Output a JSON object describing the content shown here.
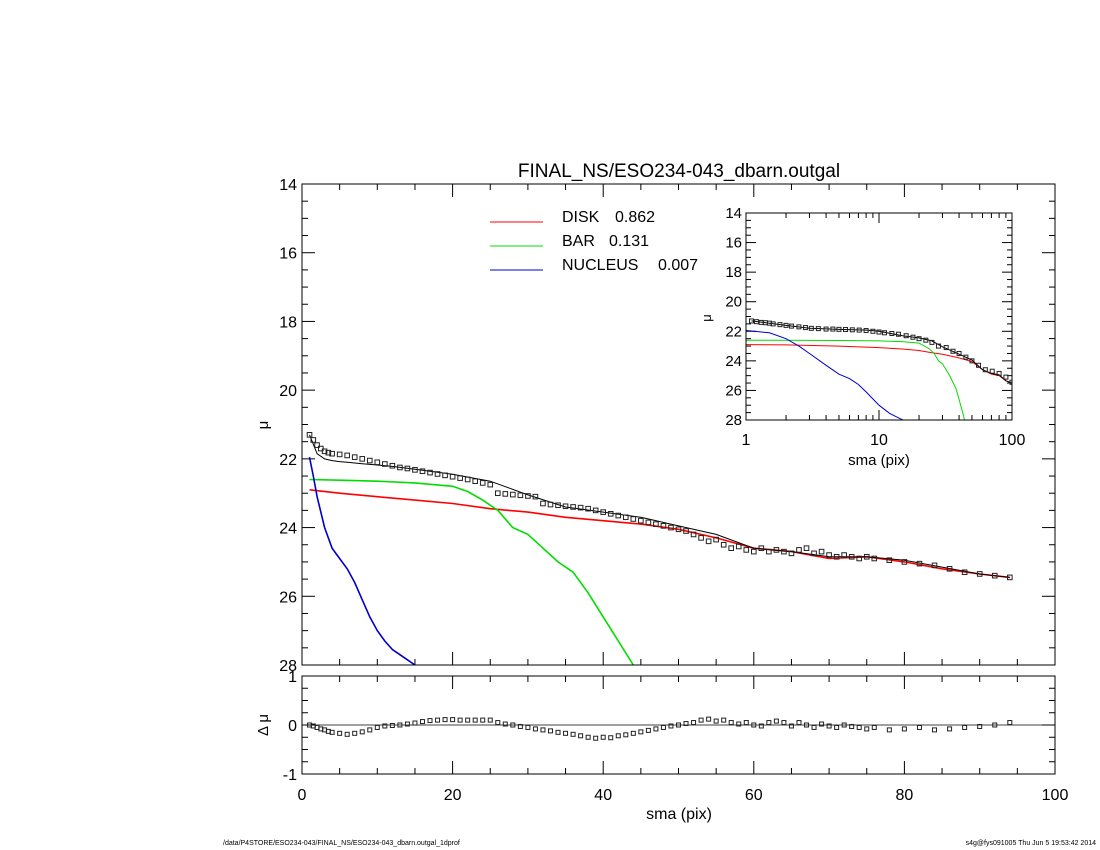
{
  "footer": {
    "path": "/data/P4STORE/ESO234-043/FINAL_NS/ESO234-043_dbarn.outgal_1dprof",
    "stamp": "s4g@fys091005  Thu Jun  5 19:53:42 2014"
  },
  "colors": {
    "disk": "#ff0000",
    "bar": "#00dd00",
    "nucleus": "#0000cc",
    "data": "#000000",
    "model": "#000000"
  },
  "chart_data": [
    {
      "id": "main",
      "type": "scatter",
      "title": "FINAL_NS/ESO234-043_dbarn.outgal",
      "xlabel": "",
      "ylabel": "μ",
      "xlim": [
        0,
        100
      ],
      "ylim": [
        28,
        14
      ],
      "y_inverted": true,
      "yticks": [
        "14",
        "16",
        "18",
        "20",
        "22",
        "24",
        "26",
        "28"
      ],
      "legend": {
        "placement": "top-center",
        "entries": [
          {
            "label": "DISK",
            "value": "0.862",
            "color": "#ff0000"
          },
          {
            "label": "BAR",
            "value": "0.131",
            "color": "#00dd00"
          },
          {
            "label": "NUCLEUS",
            "value": "0.007",
            "color": "#0000cc"
          }
        ]
      },
      "data_points": {
        "x": [
          1,
          1.5,
          2,
          2.5,
          3,
          3.5,
          4,
          5,
          6,
          7,
          8,
          9,
          10,
          11,
          12,
          13,
          14,
          15,
          16,
          17,
          18,
          19,
          20,
          21,
          22,
          23,
          24,
          25,
          26,
          27,
          28,
          29,
          30,
          31,
          32,
          33,
          34,
          35,
          36,
          37,
          38,
          39,
          40,
          41,
          42,
          43,
          44,
          45,
          46,
          47,
          48,
          49,
          50,
          51,
          52,
          53,
          54,
          55,
          56,
          57,
          58,
          59,
          60,
          61,
          62,
          63,
          64,
          65,
          66,
          67,
          68,
          69,
          70,
          71,
          72,
          73,
          74,
          75,
          76,
          78,
          80,
          82,
          84,
          86,
          88,
          90,
          92,
          94
        ],
        "y": [
          21.3,
          21.45,
          21.6,
          21.7,
          21.78,
          21.82,
          21.85,
          21.87,
          21.9,
          21.95,
          22.0,
          22.05,
          22.1,
          22.15,
          22.2,
          22.25,
          22.28,
          22.32,
          22.36,
          22.4,
          22.44,
          22.48,
          22.52,
          22.56,
          22.6,
          22.65,
          22.7,
          22.75,
          23.0,
          23.02,
          23.04,
          23.06,
          23.08,
          23.1,
          23.3,
          23.33,
          23.35,
          23.38,
          23.4,
          23.42,
          23.45,
          23.5,
          23.55,
          23.6,
          23.65,
          23.7,
          23.75,
          23.8,
          23.85,
          23.9,
          23.95,
          24.0,
          24.05,
          24.1,
          24.2,
          24.3,
          24.4,
          24.35,
          24.5,
          24.6,
          24.55,
          24.65,
          24.7,
          24.6,
          24.7,
          24.65,
          24.7,
          24.75,
          24.65,
          24.6,
          24.75,
          24.7,
          24.8,
          24.85,
          24.8,
          24.85,
          24.9,
          24.85,
          24.9,
          24.95,
          25.0,
          25.05,
          25.1,
          25.2,
          25.3,
          25.35,
          25.4,
          25.45
        ]
      },
      "series": [
        {
          "name": "DISK",
          "color": "#ff0000",
          "x": [
            1,
            5,
            10,
            15,
            20,
            25,
            30,
            35,
            40,
            45,
            50,
            55,
            60,
            65,
            70,
            75,
            80,
            85,
            90,
            94
          ],
          "y": [
            22.9,
            23.0,
            23.1,
            23.2,
            23.3,
            23.45,
            23.55,
            23.7,
            23.8,
            23.9,
            24.05,
            24.3,
            24.6,
            24.7,
            24.9,
            24.85,
            25.0,
            25.2,
            25.35,
            25.45
          ]
        },
        {
          "name": "BAR",
          "color": "#00dd00",
          "x": [
            1,
            5,
            10,
            15,
            20,
            22,
            24,
            26,
            28,
            30,
            32,
            34,
            36,
            38,
            40,
            42,
            44
          ],
          "y": [
            22.6,
            22.62,
            22.65,
            22.7,
            22.8,
            22.95,
            23.2,
            23.5,
            24.0,
            24.2,
            24.6,
            25.0,
            25.3,
            25.9,
            26.6,
            27.3,
            28.0
          ]
        },
        {
          "name": "NUCLEUS",
          "color": "#0000cc",
          "x": [
            1,
            1.5,
            2,
            3,
            4,
            5,
            6,
            7,
            8,
            9,
            10,
            11,
            12,
            13,
            14,
            15,
            16
          ],
          "y": [
            21.95,
            22.5,
            23.1,
            24.0,
            24.6,
            24.9,
            25.2,
            25.6,
            26.1,
            26.6,
            27.0,
            27.3,
            27.55,
            27.7,
            27.85,
            28.0,
            28.1
          ]
        },
        {
          "name": "MODEL",
          "color": "#000000",
          "x": [
            1,
            2,
            3,
            4,
            5,
            6,
            7,
            8,
            9,
            10,
            12,
            15,
            20,
            25,
            30,
            35,
            40,
            45,
            50,
            55,
            60,
            65,
            70,
            75,
            80,
            85,
            90,
            94
          ],
          "y": [
            21.3,
            21.85,
            22.0,
            22.05,
            22.08,
            22.1,
            22.12,
            22.14,
            22.16,
            22.18,
            22.22,
            22.3,
            22.45,
            22.65,
            23.05,
            23.4,
            23.55,
            23.7,
            23.95,
            24.2,
            24.6,
            24.7,
            24.85,
            24.85,
            24.95,
            25.15,
            25.35,
            25.45
          ]
        }
      ]
    },
    {
      "id": "residual",
      "type": "scatter",
      "xlabel": "sma (pix)",
      "ylabel": "Δ μ",
      "xlim": [
        0,
        100
      ],
      "ylim": [
        -1,
        1
      ],
      "xticks": [
        "0",
        "20",
        "40",
        "60",
        "80",
        "100"
      ],
      "yticks": [
        "1",
        "0",
        "-1"
      ],
      "x": [
        1,
        1.5,
        2,
        2.5,
        3,
        3.5,
        4,
        5,
        6,
        7,
        8,
        9,
        10,
        11,
        12,
        13,
        14,
        15,
        16,
        17,
        18,
        19,
        20,
        21,
        22,
        23,
        24,
        25,
        26,
        27,
        28,
        29,
        30,
        31,
        32,
        33,
        34,
        35,
        36,
        37,
        38,
        39,
        40,
        41,
        42,
        43,
        44,
        45,
        46,
        47,
        48,
        49,
        50,
        51,
        52,
        53,
        54,
        55,
        56,
        57,
        58,
        59,
        60,
        61,
        62,
        63,
        64,
        65,
        66,
        67,
        68,
        69,
        70,
        71,
        72,
        73,
        74,
        75,
        76,
        78,
        80,
        82,
        84,
        86,
        88,
        90,
        92,
        94
      ],
      "y": [
        0.0,
        -0.02,
        -0.05,
        -0.08,
        -0.1,
        -0.13,
        -0.15,
        -0.17,
        -0.19,
        -0.17,
        -0.14,
        -0.1,
        -0.05,
        -0.02,
        -0.01,
        0.0,
        0.02,
        0.04,
        0.07,
        0.09,
        0.1,
        0.11,
        0.11,
        0.1,
        0.1,
        0.1,
        0.1,
        0.1,
        0.05,
        0.02,
        0.0,
        -0.03,
        -0.05,
        -0.08,
        -0.1,
        -0.12,
        -0.15,
        -0.17,
        -0.19,
        -0.22,
        -0.25,
        -0.27,
        -0.25,
        -0.26,
        -0.22,
        -0.2,
        -0.17,
        -0.14,
        -0.11,
        -0.08,
        -0.05,
        -0.02,
        0.0,
        0.03,
        0.05,
        0.1,
        0.12,
        0.08,
        0.1,
        0.05,
        0.02,
        0.05,
        0.0,
        -0.02,
        0.05,
        0.08,
        0.05,
        -0.02,
        0.05,
        0.0,
        -0.05,
        0.02,
        -0.02,
        -0.05,
        0.0,
        -0.03,
        -0.05,
        -0.08,
        -0.05,
        -0.1,
        -0.08,
        -0.05,
        -0.1,
        -0.08,
        -0.05,
        -0.03,
        0.0,
        0.05
      ]
    },
    {
      "id": "inset",
      "type": "line",
      "xscale": "log",
      "xlabel": "sma (pix)",
      "ylabel": "μ",
      "xlim": [
        1,
        100
      ],
      "ylim": [
        28,
        14
      ],
      "xticks": [
        "1",
        "10",
        "100"
      ],
      "yticks": [
        "14",
        "16",
        "18",
        "20",
        "22",
        "24",
        "26",
        "28"
      ],
      "data_points": {
        "x": [
          1.1,
          1.2,
          1.3,
          1.4,
          1.5,
          1.6,
          1.8,
          2.0,
          2.2,
          2.5,
          2.8,
          3.1,
          3.5,
          4.0,
          4.5,
          5.0,
          5.6,
          6.3,
          7.1,
          8.0,
          9.0,
          10,
          11,
          12.5,
          14,
          16,
          18,
          20,
          22.5,
          25,
          28,
          32,
          36,
          40,
          45,
          50,
          56,
          63,
          71,
          80,
          90,
          100
        ],
        "y": [
          21.3,
          21.35,
          21.4,
          21.42,
          21.45,
          21.5,
          21.55,
          21.6,
          21.65,
          21.7,
          21.75,
          21.8,
          21.82,
          21.85,
          21.85,
          21.87,
          21.88,
          21.9,
          21.92,
          21.95,
          22.0,
          22.05,
          22.1,
          22.15,
          22.2,
          22.3,
          22.4,
          22.5,
          22.6,
          22.75,
          23.0,
          23.1,
          23.35,
          23.5,
          23.75,
          24.0,
          24.3,
          24.6,
          24.7,
          24.85,
          25.1,
          25.45
        ]
      },
      "series": [
        {
          "name": "DISK",
          "color": "#ff0000",
          "x": [
            1,
            2,
            5,
            10,
            15,
            20,
            25,
            30,
            40,
            50,
            60,
            70,
            80,
            90,
            100
          ],
          "y": [
            22.9,
            22.92,
            23.0,
            23.1,
            23.2,
            23.3,
            23.45,
            23.55,
            23.8,
            24.05,
            24.6,
            24.9,
            25.0,
            25.35,
            25.5
          ]
        },
        {
          "name": "BAR",
          "color": "#00dd00",
          "x": [
            1,
            2,
            5,
            10,
            15,
            20,
            24,
            26,
            28,
            30,
            34,
            38,
            42,
            44
          ],
          "y": [
            22.6,
            22.6,
            22.62,
            22.65,
            22.7,
            22.8,
            23.2,
            23.5,
            24.0,
            24.2,
            25.0,
            25.9,
            27.3,
            28.0
          ]
        },
        {
          "name": "NUCLEUS",
          "color": "#0000cc",
          "x": [
            1,
            1.5,
            2,
            2.5,
            3,
            4,
            5,
            6,
            7,
            8,
            10,
            12,
            14,
            16
          ],
          "y": [
            21.95,
            22.1,
            22.5,
            23.0,
            23.5,
            24.3,
            24.9,
            25.2,
            25.6,
            26.1,
            27.0,
            27.55,
            27.85,
            28.1
          ]
        },
        {
          "name": "MODEL",
          "color": "#000000",
          "x": [
            1.1,
            1.5,
            2,
            3,
            5,
            8,
            10,
            15,
            20,
            25,
            30,
            40,
            50,
            60,
            70,
            80,
            90,
            100
          ],
          "y": [
            21.3,
            21.45,
            21.6,
            21.8,
            21.87,
            21.92,
            22.0,
            22.3,
            22.45,
            22.65,
            23.05,
            23.55,
            23.95,
            24.6,
            24.85,
            24.95,
            25.35,
            25.5
          ]
        }
      ]
    }
  ]
}
